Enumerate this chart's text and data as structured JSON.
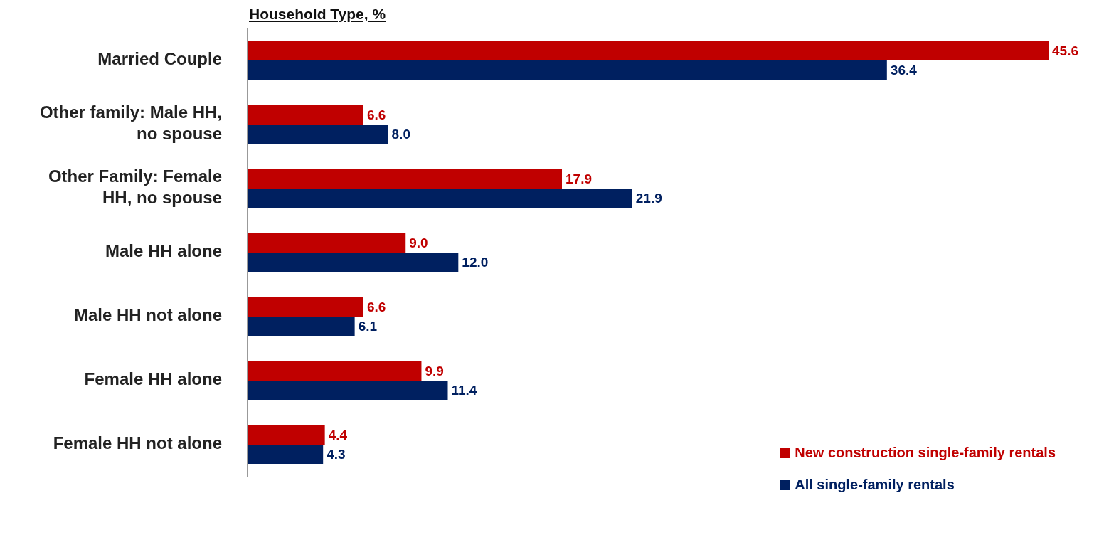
{
  "chart_data": {
    "type": "bar",
    "orientation": "horizontal",
    "title": "Household Type, %",
    "categories": [
      "Married Couple",
      "Other family: Male HH, no spouse",
      "Other Family: Female HH, no spouse",
      "Male HH alone",
      "Male HH not alone",
      "Female HH alone",
      "Female HH not alone"
    ],
    "series": [
      {
        "name": "New construction single-family rentals",
        "color": "#c00000",
        "values": [
          45.6,
          6.6,
          17.9,
          9.0,
          6.6,
          9.9,
          4.4
        ],
        "value_labels": [
          "45.6",
          "6.6",
          "17.9",
          "9.0",
          "6.6",
          "9.9",
          "4.4"
        ]
      },
      {
        "name": "All single-family rentals",
        "color": "#002060",
        "values": [
          36.4,
          8.0,
          21.9,
          12.0,
          6.1,
          11.4,
          4.3
        ],
        "value_labels": [
          "36.4",
          "8.0",
          "21.9",
          "12.0",
          "6.1",
          "11.4",
          "4.3"
        ]
      }
    ],
    "legend": "bottom right"
  }
}
